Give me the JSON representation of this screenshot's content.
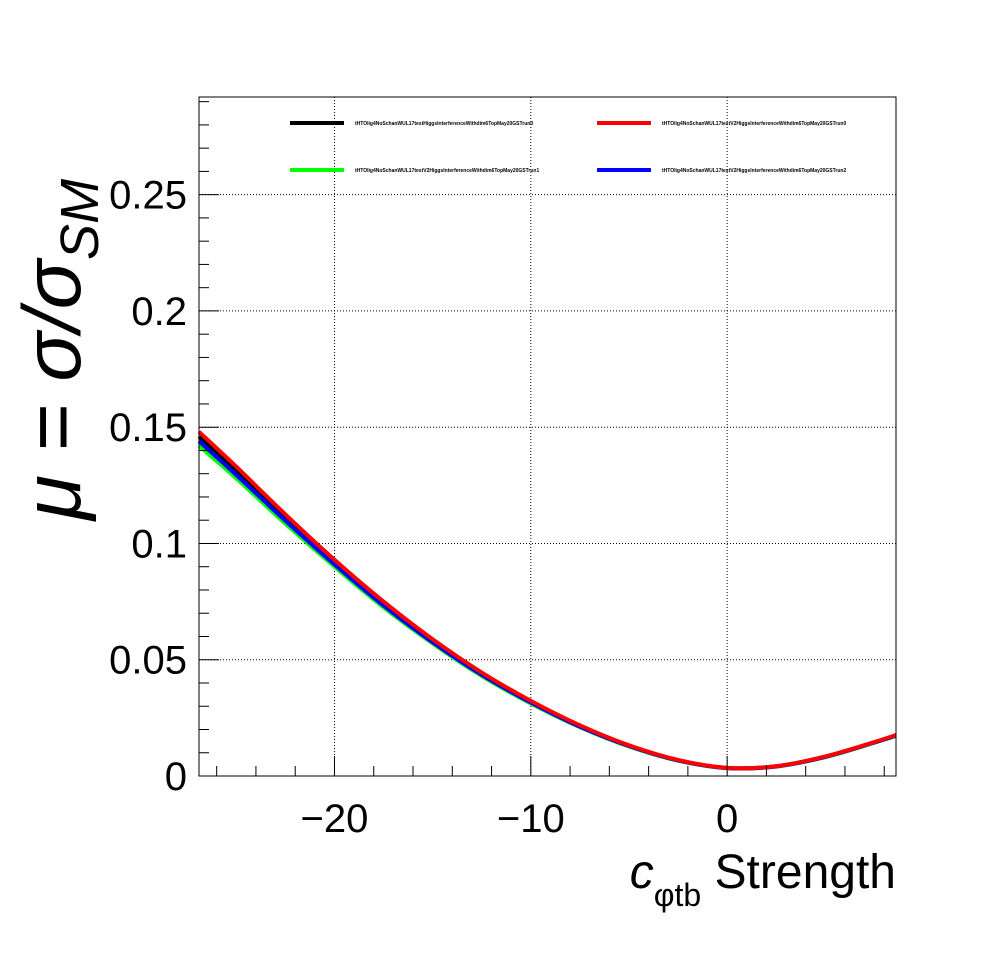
{
  "chart_data": {
    "type": "line",
    "xlabel": {
      "main": "c",
      "subscript": "φtb",
      "suffix": " Strength"
    },
    "ylabel": {
      "prefix": "μ = σ/σ",
      "subscript": "SM"
    },
    "xlim": [
      -26.9,
      8.6
    ],
    "ylim": [
      0,
      0.292
    ],
    "x_ticks": [
      -20,
      -10,
      0
    ],
    "x_tick_labels": [
      "−20",
      "−10",
      "0"
    ],
    "y_ticks": [
      0,
      0.05,
      0.1,
      0.15,
      0.2,
      0.25
    ],
    "y_tick_labels": [
      "0",
      "0.05",
      "0.1",
      "0.15",
      "0.2",
      "0.25"
    ],
    "grid": true,
    "legend_position": "top",
    "series": [
      {
        "name": "tHTOlig4NoSchanWUL17testHiggsInterferenceWithdim6TopMay20GSTrun0",
        "color": "#000000",
        "x": [
          -26.9,
          -25,
          -22.5,
          -20,
          -17.5,
          -15,
          -12.5,
          -10,
          -7.5,
          -5,
          -2.5,
          0,
          2.5,
          5,
          7.5,
          8.6
        ],
        "y": [
          0.146,
          0.131,
          0.111,
          0.092,
          0.074,
          0.058,
          0.044,
          0.032,
          0.0215,
          0.013,
          0.0068,
          0.0035,
          0.0042,
          0.0083,
          0.0145,
          0.0175
        ]
      },
      {
        "name": "tHTOlig4NoSchanWUL17testV2HiggsInterferenceWithdim6TopMay20GSTrun0",
        "color": "#ff0000",
        "x": [
          -26.9,
          -25,
          -22.5,
          -20,
          -17.5,
          -15,
          -12.5,
          -10,
          -7.5,
          -5,
          -2.5,
          0,
          2.5,
          5,
          7.5,
          8.6
        ],
        "y": [
          0.148,
          0.133,
          0.1125,
          0.093,
          0.075,
          0.0588,
          0.0445,
          0.0323,
          0.0218,
          0.0132,
          0.0069,
          0.0035,
          0.0042,
          0.0084,
          0.0146,
          0.0176
        ]
      },
      {
        "name": "tHTOlig4NoSchanWUL17testV2HiggsInterferenceWithdim6TopMay20GSTrun1",
        "color": "#00ff00",
        "x": [
          -26.9,
          -25,
          -22.5,
          -20,
          -17.5,
          -15,
          -12.5,
          -10,
          -7.5,
          -5,
          -2.5,
          0,
          2.5,
          5,
          7.5,
          8.6
        ],
        "y": [
          0.142,
          0.128,
          0.1085,
          0.09,
          0.0725,
          0.057,
          0.043,
          0.0312,
          0.021,
          0.0127,
          0.0066,
          0.0034,
          0.0041,
          0.0081,
          0.0143,
          0.0173
        ]
      },
      {
        "name": "tHTOlig4NoSchanWUL17testV2HiggsInterferenceWithdim6TopMay20GSTrun2",
        "color": "#0000ff",
        "x": [
          -26.9,
          -25,
          -22.5,
          -20,
          -17.5,
          -15,
          -12.5,
          -10,
          -7.5,
          -5,
          -2.5,
          0,
          2.5,
          5,
          7.5,
          8.6
        ],
        "y": [
          0.144,
          0.1295,
          0.1098,
          0.091,
          0.0733,
          0.0575,
          0.0435,
          0.0316,
          0.0212,
          0.0129,
          0.0067,
          0.0034,
          0.0041,
          0.0082,
          0.0144,
          0.0174
        ]
      }
    ]
  }
}
